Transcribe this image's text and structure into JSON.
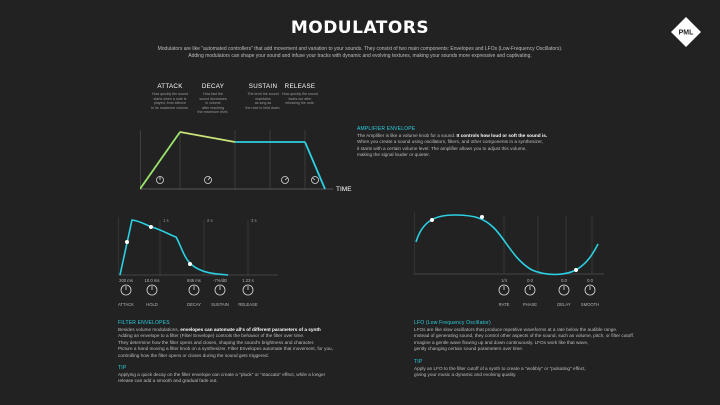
{
  "title": "MODULATORS",
  "logo_text": "PML",
  "intro": [
    "Modulators are like \"automated controllers\" that add movement and variation to your sounds. They consist of two main components: Envelopes and LFOs (Low-Frequency Oscillators).",
    "Adding modulators can shape your sound and infuse your tracks with dynamic and evolving textures, making your sounds more expressive and captivating."
  ],
  "adsr": {
    "stages": [
      {
        "name": "ATTACK",
        "desc": [
          "How quickly the sound",
          "starts when a note is",
          "played, from silence",
          "to its maximum volume."
        ]
      },
      {
        "name": "DECAY",
        "desc": [
          "How fast the",
          "sound decreases",
          "in volume",
          "after reaching",
          "the maximum level."
        ]
      },
      {
        "name": "SUSTAIN",
        "desc": [
          "The level the sound",
          "maintains",
          "as long as",
          "the note is held down."
        ]
      },
      {
        "name": "RELEASE",
        "desc": [
          "How quickly the sound",
          "fades out after",
          "releasing the note."
        ]
      }
    ],
    "time_label": "TIME",
    "colors": {
      "attack": "#9be36a",
      "decay": "#c9e27a",
      "sustain": "#2bd0e2",
      "release": "#2bd0e2"
    }
  },
  "amp_envelope": {
    "heading": "AMPLIFIER ENVELOPE",
    "lines": [
      {
        "pre": "The Amplifier is like a volume knob for a sound. ",
        "bold": "It controls how loud or soft the sound is.",
        "post": ""
      },
      {
        "pre": "When you create a sound using oscillators, filters, and other components in a synthesizer,",
        "bold": "",
        "post": ""
      },
      {
        "pre": "it starts with a certain volume level. The amplifier allows you to adjust this volume,",
        "bold": "",
        "post": ""
      },
      {
        "pre": "making the signal louder or quieter.",
        "bold": "",
        "post": ""
      }
    ]
  },
  "filter_envelope": {
    "tick_labels": [
      "1 s",
      "2 s",
      "3 s"
    ],
    "knobs": [
      {
        "value": "200 ms",
        "label": "ATTACK"
      },
      {
        "value": "10.0 ms",
        "label": "HOLD"
      },
      {
        "value": "846 ms",
        "label": "DECAY"
      },
      {
        "value": "-7%/dB",
        "label": "SUSTAIN"
      },
      {
        "value": "1.23 s",
        "label": "RELEASE"
      }
    ],
    "heading": "FILTER ENVELOPES",
    "lines": [
      {
        "pre": "Besides volume modulations, ",
        "bold": "envelopes can automate all's of different parameters of a synth",
        "post": ""
      },
      {
        "pre": "Adding an envelope to a filter (Filter Envelope) controls the behavior of the filter over time.",
        "bold": "",
        "post": ""
      },
      {
        "pre": "They determine how the filter opens and closes, shaping the sound's brightness and character.",
        "bold": "",
        "post": ""
      },
      {
        "pre": "Picture a hand moving a filter knob on a synthesizer. Filter Envelopes automate that movement, for you,",
        "bold": "",
        "post": ""
      },
      {
        "pre": "controlling how the filter opens or closes during the sound gets triggered.",
        "bold": "",
        "post": ""
      }
    ],
    "tip_heading": "TIP",
    "tip_lines": [
      "Applying a quick decay on the filter envelope can create a \"pluck\" or \"staccato\" effect, while a longer",
      "release can add a smooth and gradual fade out."
    ]
  },
  "lfo": {
    "knobs": [
      {
        "value": "1/4",
        "label": "RATE"
      },
      {
        "value": "0.0",
        "label": "PHASE"
      },
      {
        "value": "0.0",
        "label": "DELAY"
      },
      {
        "value": "0.0",
        "label": "SMOOTH"
      }
    ],
    "heading": "LFO (Low Frequency Oscillator)",
    "lines": [
      "LFOs are like slow oscillators that produce repetitive waveforms at a rate below the audible range.",
      "Instead of generating sound, they control other aspects of the sound, such as volume, pitch, or filter cutoff.",
      "Imagine a gentle wave flowing up and down continuously. LFOs work like that wave,",
      "gently changing certain sound parameters over time."
    ],
    "tip_heading": "TIP",
    "tip_lines": [
      "Apply an LFO to the filter cutoff of a synth to create a \"wobbly\" or \"pulsating\" effect,",
      "giving your music a dynamic and evolving quality."
    ]
  },
  "colors": {
    "accent": "#2bd0e2",
    "background": "#222222",
    "text": "#bdbdbd"
  }
}
